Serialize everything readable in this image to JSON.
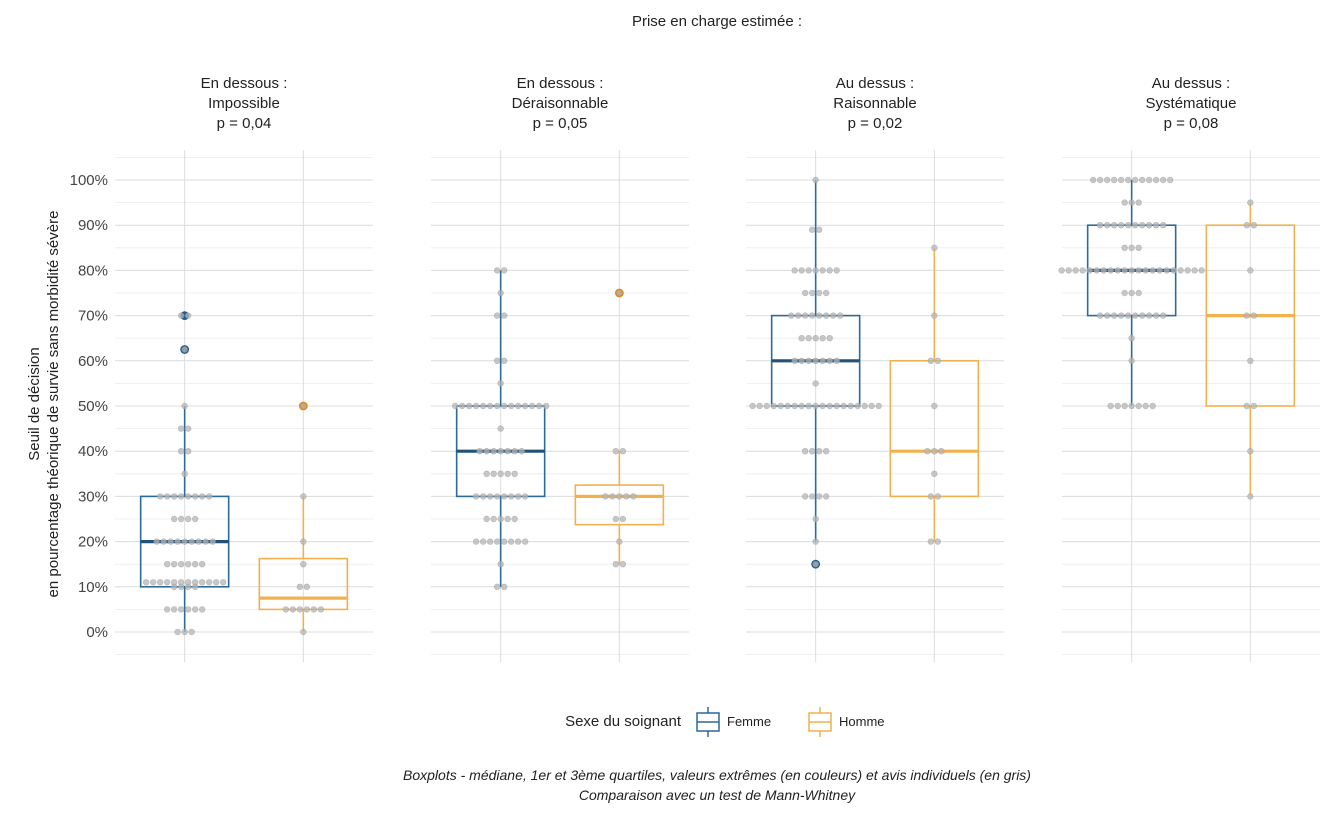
{
  "chart_data": {
    "type": "boxplot",
    "title": "Prise en charge estimée :",
    "ylabel": [
      "Seuil de décision",
      "en pourcentage théorique de survie sans morbidité sévère"
    ],
    "ylim": [
      -5,
      106
    ],
    "y_ticks": [
      0,
      10,
      20,
      30,
      40,
      50,
      60,
      70,
      80,
      90,
      100
    ],
    "y_tick_labels": [
      "0%",
      "10%",
      "20%",
      "30%",
      "40%",
      "50%",
      "60%",
      "70%",
      "80%",
      "90%",
      "100%"
    ],
    "grid": true,
    "legend": {
      "title": "Sexe du soignant",
      "placement": "bottom",
      "items": [
        {
          "label": "Femme",
          "color": "#2c6a9a"
        },
        {
          "label": "Homme",
          "color": "#f2b14e"
        }
      ]
    },
    "caption": [
      "Boxplots - médiane, 1er et 3ème quartiles, valeurs extrêmes (en couleurs) et avis individuels (en gris)",
      "Comparaison avec un test de Mann-Whitney"
    ],
    "colors": {
      "femme_box": "#2c6a9a",
      "femme_median": "#21527a",
      "femme_outlier": "#1f5c8c",
      "homme_box": "#f2b14e",
      "homme_median": "#f2b14e",
      "homme_outlier": "#e08c1a",
      "points": "#b5b5b5"
    },
    "panels": [
      {
        "title": [
          "En dessous :",
          "Impossible",
          "p = 0,04"
        ],
        "groups": [
          {
            "name": "Femme",
            "q1": 10,
            "median": 20,
            "q3": 30,
            "whisker_low": 0,
            "whisker_high": 50,
            "outliers": [
              62.5,
              70
            ],
            "points": [
              [
                0,
                3
              ],
              [
                5,
                6
              ],
              [
                10,
                4
              ],
              [
                11,
                12
              ],
              [
                15,
                6
              ],
              [
                20,
                9
              ],
              [
                25,
                4
              ],
              [
                30,
                8
              ],
              [
                35,
                1
              ],
              [
                40,
                2
              ],
              [
                45,
                2
              ],
              [
                50,
                1
              ],
              [
                62.5,
                1
              ],
              [
                70,
                2
              ]
            ]
          },
          {
            "name": "Homme",
            "q1": 5,
            "median": 7.5,
            "q3": 16.25,
            "whisker_low": 0,
            "whisker_high": 30,
            "outliers": [
              50
            ],
            "points": [
              [
                0,
                1
              ],
              [
                5,
                6
              ],
              [
                10,
                2
              ],
              [
                15,
                1
              ],
              [
                20,
                1
              ],
              [
                30,
                1
              ],
              [
                50,
                1
              ]
            ]
          }
        ]
      },
      {
        "title": [
          "En dessous :",
          "Déraisonnable",
          "p = 0,05"
        ],
        "groups": [
          {
            "name": "Femme",
            "q1": 30,
            "median": 40,
            "q3": 50,
            "whisker_low": 10,
            "whisker_high": 80,
            "outliers": [],
            "points": [
              [
                10,
                2
              ],
              [
                15,
                1
              ],
              [
                20,
                8
              ],
              [
                25,
                5
              ],
              [
                30,
                8
              ],
              [
                35,
                5
              ],
              [
                40,
                7
              ],
              [
                45,
                1
              ],
              [
                50,
                14
              ],
              [
                55,
                1
              ],
              [
                60,
                2
              ],
              [
                70,
                2
              ],
              [
                75,
                1
              ],
              [
                80,
                2
              ]
            ]
          },
          {
            "name": "Homme",
            "q1": 23.75,
            "median": 30,
            "q3": 32.5,
            "whisker_low": 15,
            "whisker_high": 40,
            "outliers": [
              75
            ],
            "points": [
              [
                15,
                2
              ],
              [
                20,
                1
              ],
              [
                25,
                2
              ],
              [
                30,
                5
              ],
              [
                40,
                2
              ],
              [
                75,
                1
              ]
            ]
          }
        ]
      },
      {
        "title": [
          "Au dessus :",
          "Raisonnable",
          "p = 0,02"
        ],
        "groups": [
          {
            "name": "Femme",
            "q1": 50,
            "median": 60,
            "q3": 70,
            "whisker_low": 20,
            "whisker_high": 100,
            "outliers": [
              15
            ],
            "points": [
              [
                15,
                1
              ],
              [
                20,
                1
              ],
              [
                25,
                1
              ],
              [
                30,
                4
              ],
              [
                40,
                4
              ],
              [
                50,
                19
              ],
              [
                55,
                1
              ],
              [
                60,
                7
              ],
              [
                65,
                5
              ],
              [
                70,
                8
              ],
              [
                75,
                4
              ],
              [
                80,
                7
              ],
              [
                89,
                2
              ],
              [
                100,
                1
              ]
            ]
          },
          {
            "name": "Homme",
            "q1": 30,
            "median": 40,
            "q3": 60,
            "whisker_low": 20,
            "whisker_high": 85,
            "outliers": [],
            "points": [
              [
                20,
                2
              ],
              [
                30,
                2
              ],
              [
                35,
                1
              ],
              [
                40,
                3
              ],
              [
                50,
                1
              ],
              [
                60,
                2
              ],
              [
                70,
                1
              ],
              [
                85,
                1
              ]
            ]
          }
        ]
      },
      {
        "title": [
          "Au dessus :",
          "Systématique",
          "p = 0,08"
        ],
        "groups": [
          {
            "name": "Femme",
            "q1": 70,
            "median": 80,
            "q3": 90,
            "whisker_low": 50,
            "whisker_high": 100,
            "outliers": [],
            "points": [
              [
                50,
                7
              ],
              [
                60,
                1
              ],
              [
                65,
                1
              ],
              [
                70,
                10
              ],
              [
                75,
                3
              ],
              [
                80,
                21
              ],
              [
                85,
                3
              ],
              [
                90,
                10
              ],
              [
                95,
                3
              ],
              [
                100,
                12
              ]
            ]
          },
          {
            "name": "Homme",
            "q1": 50,
            "median": 70,
            "q3": 90,
            "whisker_low": 30,
            "whisker_high": 95,
            "outliers": [],
            "points": [
              [
                30,
                1
              ],
              [
                40,
                1
              ],
              [
                50,
                2
              ],
              [
                60,
                1
              ],
              [
                70,
                2
              ],
              [
                80,
                1
              ],
              [
                90,
                2
              ],
              [
                95,
                1
              ]
            ]
          }
        ]
      }
    ]
  }
}
